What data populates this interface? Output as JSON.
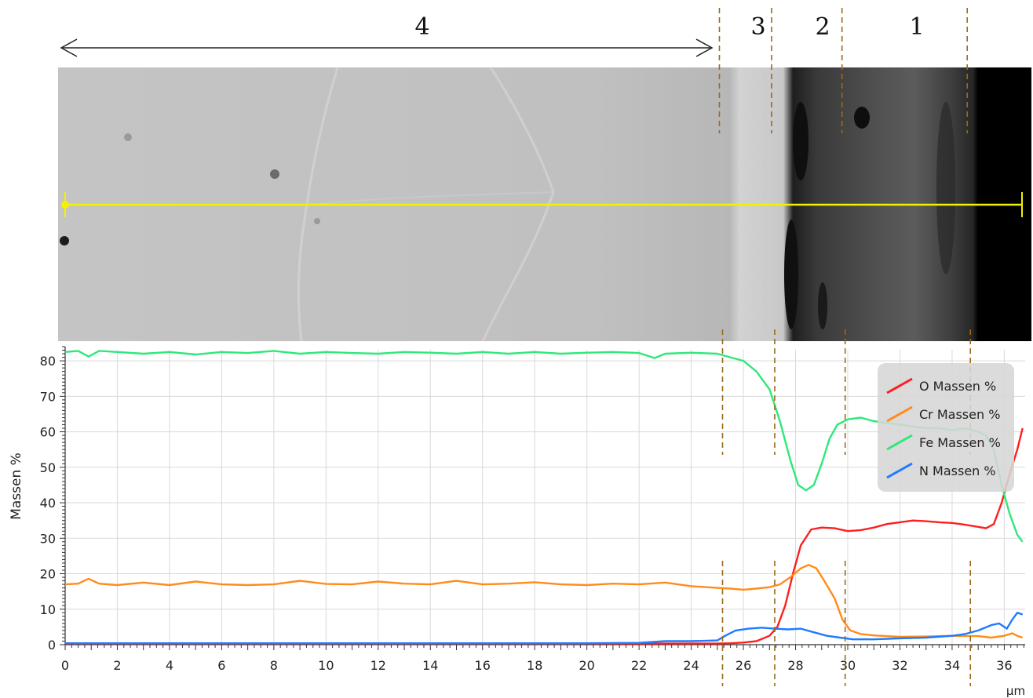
{
  "zones": [
    {
      "label": "4"
    },
    {
      "label": "3"
    },
    {
      "label": "2"
    },
    {
      "label": "1"
    }
  ],
  "zone_boundaries_um": [
    25.2,
    27.2,
    29.9,
    34.7
  ],
  "micrograph": {
    "line_color": "#f2f200"
  },
  "colors": {
    "O": "#ff1f1f",
    "Cr": "#ff8c1a",
    "Fe": "#2ee87a",
    "N": "#1f7bff",
    "dashed": "#9a6a1a",
    "grid": "#d9d9d9"
  },
  "chart_data": {
    "type": "line",
    "xlabel": "µm",
    "ylabel": "Massen %",
    "xlim": [
      0,
      36.8
    ],
    "ylim": [
      0,
      84
    ],
    "x_ticks": [
      "0",
      "2",
      "4",
      "6",
      "8",
      "10",
      "12",
      "14",
      "16",
      "18",
      "20",
      "22",
      "24",
      "26",
      "28",
      "30",
      "32",
      "34",
      "36"
    ],
    "y_ticks": [
      "0",
      "10",
      "20",
      "30",
      "40",
      "50",
      "60",
      "70",
      "80"
    ],
    "grid": true,
    "legend_position": "top-right",
    "series": [
      {
        "name": "O Massen %",
        "key": "O",
        "x": [
          0,
          5,
          10,
          15,
          20,
          25,
          25.5,
          26,
          26.5,
          27,
          27.3,
          27.6,
          27.9,
          28.2,
          28.6,
          29,
          29.5,
          30,
          30.5,
          31,
          31.5,
          32,
          32.5,
          33,
          33.5,
          34,
          34.5,
          35,
          35.3,
          35.6,
          35.9,
          36.2,
          36.5,
          36.7
        ],
        "y": [
          0.3,
          0.3,
          0.3,
          0.3,
          0.3,
          0.3,
          0.4,
          0.6,
          1,
          2.5,
          5,
          11,
          20,
          28,
          32.5,
          33,
          32.8,
          32,
          32.3,
          33,
          34,
          34.5,
          35,
          34.8,
          34.5,
          34.3,
          33.8,
          33.2,
          32.8,
          34,
          40,
          48,
          55,
          61
        ]
      },
      {
        "name": "Cr Massen %",
        "key": "Cr",
        "x": [
          0,
          0.5,
          0.9,
          1.3,
          2,
          3,
          4,
          5,
          6,
          7,
          8,
          9,
          10,
          11,
          12,
          13,
          14,
          15,
          16,
          17,
          18,
          19,
          20,
          21,
          22,
          23,
          24,
          25,
          25.5,
          26,
          26.5,
          27,
          27.4,
          27.8,
          28.2,
          28.5,
          28.8,
          29.1,
          29.5,
          29.8,
          30.1,
          30.5,
          31,
          32,
          33,
          34,
          35,
          35.5,
          36,
          36.3,
          36.5,
          36.7
        ],
        "y": [
          17,
          17.2,
          18.6,
          17.2,
          16.8,
          17.5,
          16.8,
          17.8,
          17,
          16.8,
          17,
          18,
          17.1,
          17,
          17.8,
          17.2,
          17,
          18,
          17,
          17.2,
          17.6,
          17,
          16.8,
          17.2,
          17,
          17.5,
          16.5,
          16,
          15.8,
          15.5,
          15.8,
          16.2,
          17,
          19,
          21.5,
          22.5,
          21.5,
          18,
          13,
          7,
          4,
          3,
          2.6,
          2.2,
          2.3,
          2.5,
          2.4,
          2,
          2.5,
          3.2,
          2.5,
          2
        ]
      },
      {
        "name": "Fe Massen %",
        "key": "Fe",
        "x": [
          0,
          0.5,
          0.9,
          1.3,
          2,
          3,
          4,
          5,
          6,
          7,
          8,
          9,
          10,
          11,
          12,
          13,
          14,
          15,
          16,
          17,
          18,
          19,
          20,
          21,
          22,
          22.6,
          23,
          24,
          25,
          25.5,
          26,
          26.5,
          27,
          27.4,
          27.8,
          28.1,
          28.4,
          28.7,
          29,
          29.3,
          29.6,
          30,
          30.5,
          31,
          31.5,
          32,
          32.5,
          33,
          33.5,
          34,
          34.5,
          35,
          35.3,
          35.6,
          35.9,
          36.2,
          36.5,
          36.7
        ],
        "y": [
          82.5,
          82.8,
          81.2,
          82.8,
          82.5,
          82,
          82.5,
          81.8,
          82.5,
          82.2,
          82.8,
          82,
          82.5,
          82.2,
          82,
          82.5,
          82.3,
          82,
          82.5,
          82,
          82.5,
          82,
          82.3,
          82.5,
          82.2,
          80.8,
          82,
          82.3,
          82,
          81,
          80,
          77,
          72,
          63,
          52,
          45,
          43.5,
          45,
          51,
          58,
          62,
          63.5,
          64,
          63,
          62.5,
          62,
          61.5,
          61,
          61,
          60.5,
          61,
          60,
          59,
          55,
          45,
          37,
          31,
          29
        ]
      },
      {
        "name": "N Massen %",
        "key": "N",
        "x": [
          0,
          5,
          10,
          15,
          20,
          22,
          23,
          24,
          25,
          25.3,
          25.7,
          26.2,
          26.7,
          27.2,
          27.7,
          28.2,
          28.7,
          29.2,
          29.7,
          30.2,
          31,
          32,
          33,
          34,
          34.5,
          35,
          35.5,
          35.8,
          36.1,
          36.3,
          36.5,
          36.7
        ],
        "y": [
          0.4,
          0.4,
          0.4,
          0.4,
          0.4,
          0.5,
          1,
          1,
          1.2,
          2.5,
          4,
          4.5,
          4.8,
          4.5,
          4.3,
          4.5,
          3.5,
          2.5,
          2,
          1.5,
          1.5,
          1.8,
          2,
          2.5,
          3,
          4,
          5.5,
          6,
          4.5,
          7,
          9,
          8.5
        ]
      }
    ]
  }
}
